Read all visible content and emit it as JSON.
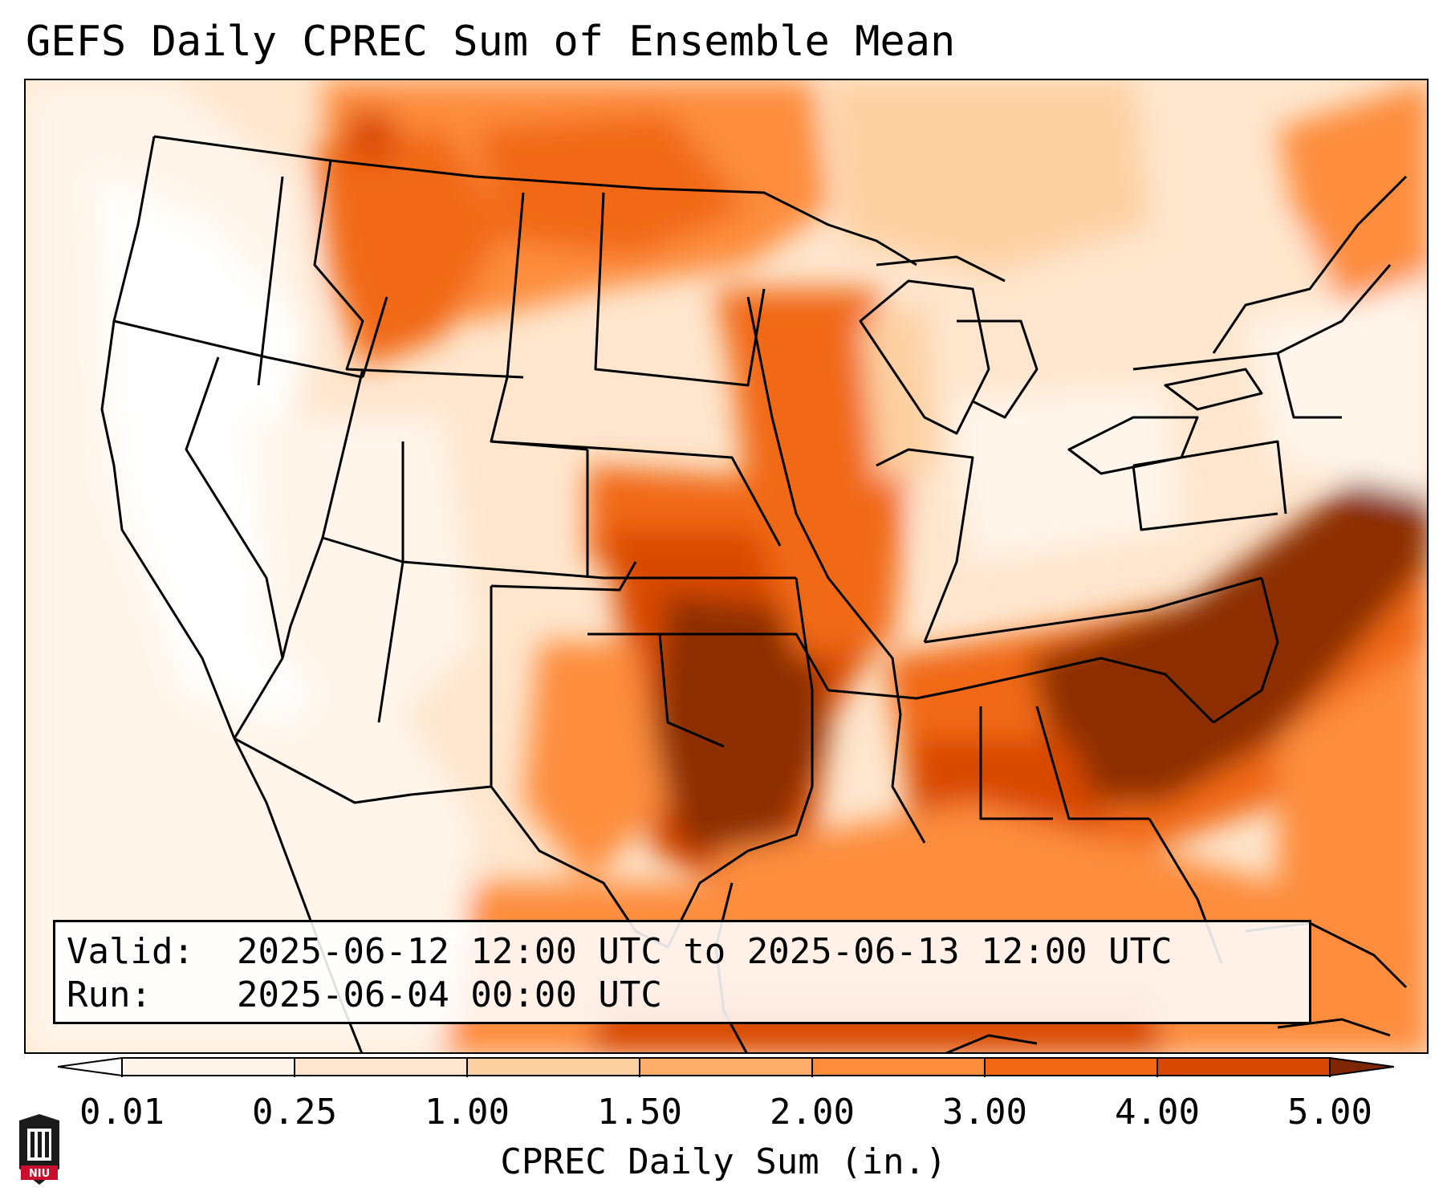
{
  "title": "GEFS Daily CPREC Sum of Ensemble Mean",
  "info": {
    "valid_label": "Valid:",
    "valid_value": "2025-06-12 12:00 UTC to 2025-06-13 12:00 UTC",
    "run_label": "Run:",
    "run_value": "2025-06-04 00:00 UTC"
  },
  "colorbar": {
    "label": "CPREC Daily Sum (in.)",
    "ticks": [
      "0.01",
      "0.25",
      "1.00",
      "1.50",
      "2.00",
      "3.00",
      "4.00",
      "5.00"
    ],
    "colors": [
      "#fff5eb",
      "#fee6ce",
      "#fdd0a2",
      "#fdae6b",
      "#fd8d3c",
      "#f16913",
      "#d94801",
      "#8c2d04"
    ],
    "under_color": "#ffffff",
    "over_color": "#7f2704",
    "extend": "both"
  },
  "logo": {
    "text": "NIU",
    "colors": {
      "shield": "#1a1a1a",
      "band": "#c8102e"
    }
  }
}
